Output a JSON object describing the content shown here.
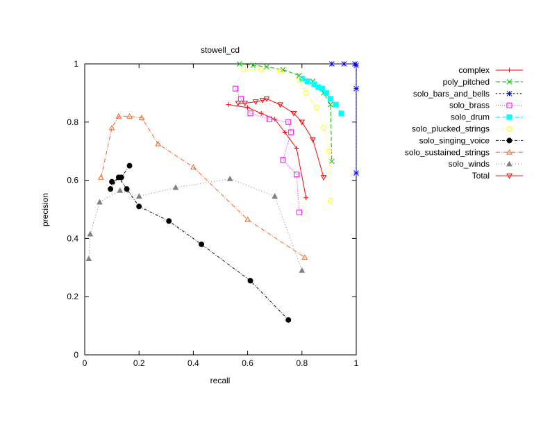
{
  "chart_data": {
    "type": "line",
    "title": "stowell_cd",
    "xlabel": "recall",
    "ylabel": "precision",
    "xlim": [
      0,
      1
    ],
    "ylim": [
      0,
      1
    ],
    "xticks": [
      "0",
      "0.2",
      "0.4",
      "0.6",
      "0.8",
      "1"
    ],
    "yticks": [
      "0",
      "0.2",
      "0.4",
      "0.6",
      "0.8",
      "1"
    ],
    "grid": false,
    "legend_position": "right",
    "series": [
      {
        "name": "complex",
        "color": "#ff0000",
        "marker": "plus",
        "dash": "",
        "points": [
          [
            0.53,
            0.86
          ],
          [
            0.6,
            0.85
          ],
          [
            0.65,
            0.83
          ],
          [
            0.7,
            0.81
          ],
          [
            0.737,
            0.765
          ],
          [
            0.78,
            0.71
          ],
          [
            0.815,
            0.54
          ]
        ]
      },
      {
        "name": "poly_pitched",
        "color": "#00c000",
        "marker": "x",
        "dash": "6,3",
        "points": [
          [
            0.57,
            1.0
          ],
          [
            0.62,
            0.995
          ],
          [
            0.67,
            0.99
          ],
          [
            0.73,
            0.98
          ],
          [
            0.79,
            0.96
          ],
          [
            0.84,
            0.94
          ],
          [
            0.88,
            0.9
          ],
          [
            0.905,
            0.86
          ],
          [
            0.91,
            0.665
          ]
        ]
      },
      {
        "name": "solo_bars_and_bells",
        "color": "#0000ff",
        "marker": "star",
        "dash": "2,3",
        "points": [
          [
            0.91,
            1.0
          ],
          [
            0.955,
            1.0
          ],
          [
            0.995,
            1.0
          ],
          [
            1.0,
            0.995
          ],
          [
            1.0,
            0.915
          ],
          [
            1.0,
            0.625
          ]
        ]
      },
      {
        "name": "solo_brass",
        "color": "#ff00ff",
        "marker": "box",
        "dash": "1,2",
        "points": [
          [
            0.555,
            0.915
          ],
          [
            0.575,
            0.88
          ],
          [
            0.61,
            0.83
          ],
          [
            0.68,
            0.81
          ],
          [
            0.75,
            0.8
          ],
          [
            0.76,
            0.765
          ],
          [
            0.73,
            0.67
          ],
          [
            0.78,
            0.62
          ],
          [
            0.79,
            0.49
          ]
        ]
      },
      {
        "name": "solo_drum",
        "color": "#00ffff",
        "marker": "filledbox",
        "dash": "6,3",
        "points": [
          [
            0.8,
            0.95
          ],
          [
            0.82,
            0.94
          ],
          [
            0.845,
            0.93
          ],
          [
            0.86,
            0.92
          ],
          [
            0.875,
            0.915
          ],
          [
            0.89,
            0.9
          ],
          [
            0.905,
            0.88
          ],
          [
            0.925,
            0.86
          ],
          [
            0.945,
            0.83
          ]
        ]
      },
      {
        "name": "solo_plucked_strings",
        "color": "#ffff00",
        "marker": "circle",
        "dash": "1,2",
        "points": [
          [
            0.585,
            0.98
          ],
          [
            0.65,
            0.98
          ],
          [
            0.72,
            0.975
          ],
          [
            0.79,
            0.945
          ],
          [
            0.815,
            0.9
          ],
          [
            0.855,
            0.85
          ],
          [
            0.88,
            0.78
          ],
          [
            0.9,
            0.7
          ],
          [
            0.905,
            0.53
          ]
        ]
      },
      {
        "name": "solo_singing_voice",
        "color": "#000000",
        "marker": "filledcircle",
        "dash": "4,2,1,2",
        "points": [
          [
            0.165,
            0.65
          ],
          [
            0.135,
            0.61
          ],
          [
            0.1,
            0.595
          ],
          [
            0.095,
            0.57
          ],
          [
            0.125,
            0.61
          ],
          [
            0.155,
            0.57
          ],
          [
            0.2,
            0.51
          ],
          [
            0.31,
            0.46
          ],
          [
            0.43,
            0.38
          ],
          [
            0.61,
            0.255
          ],
          [
            0.75,
            0.12
          ]
        ]
      },
      {
        "name": "solo_sustained_strings",
        "color": "#ff6020",
        "marker": "triangle",
        "dash": "6,2,1,2",
        "points": [
          [
            0.06,
            0.61
          ],
          [
            0.1,
            0.78
          ],
          [
            0.125,
            0.82
          ],
          [
            0.165,
            0.82
          ],
          [
            0.21,
            0.815
          ],
          [
            0.27,
            0.725
          ],
          [
            0.4,
            0.645
          ],
          [
            0.6,
            0.465
          ],
          [
            0.81,
            0.335
          ]
        ]
      },
      {
        "name": "solo_winds",
        "color": "#808080",
        "marker": "filledtriangle",
        "dash": "1,3",
        "points": [
          [
            0.015,
            0.33
          ],
          [
            0.02,
            0.415
          ],
          [
            0.055,
            0.525
          ],
          [
            0.13,
            0.565
          ],
          [
            0.2,
            0.545
          ],
          [
            0.335,
            0.575
          ],
          [
            0.535,
            0.605
          ],
          [
            0.7,
            0.545
          ],
          [
            0.8,
            0.29
          ]
        ]
      },
      {
        "name": "Total",
        "color": "#ff0000",
        "marker": "invtriangle",
        "dash": "",
        "points": [
          [
            0.565,
            0.865
          ],
          [
            0.59,
            0.865
          ],
          [
            0.63,
            0.87
          ],
          [
            0.655,
            0.875
          ],
          [
            0.67,
            0.88
          ],
          [
            0.72,
            0.86
          ],
          [
            0.77,
            0.83
          ],
          [
            0.8,
            0.8
          ],
          [
            0.84,
            0.74
          ],
          [
            0.88,
            0.61
          ]
        ]
      }
    ]
  }
}
